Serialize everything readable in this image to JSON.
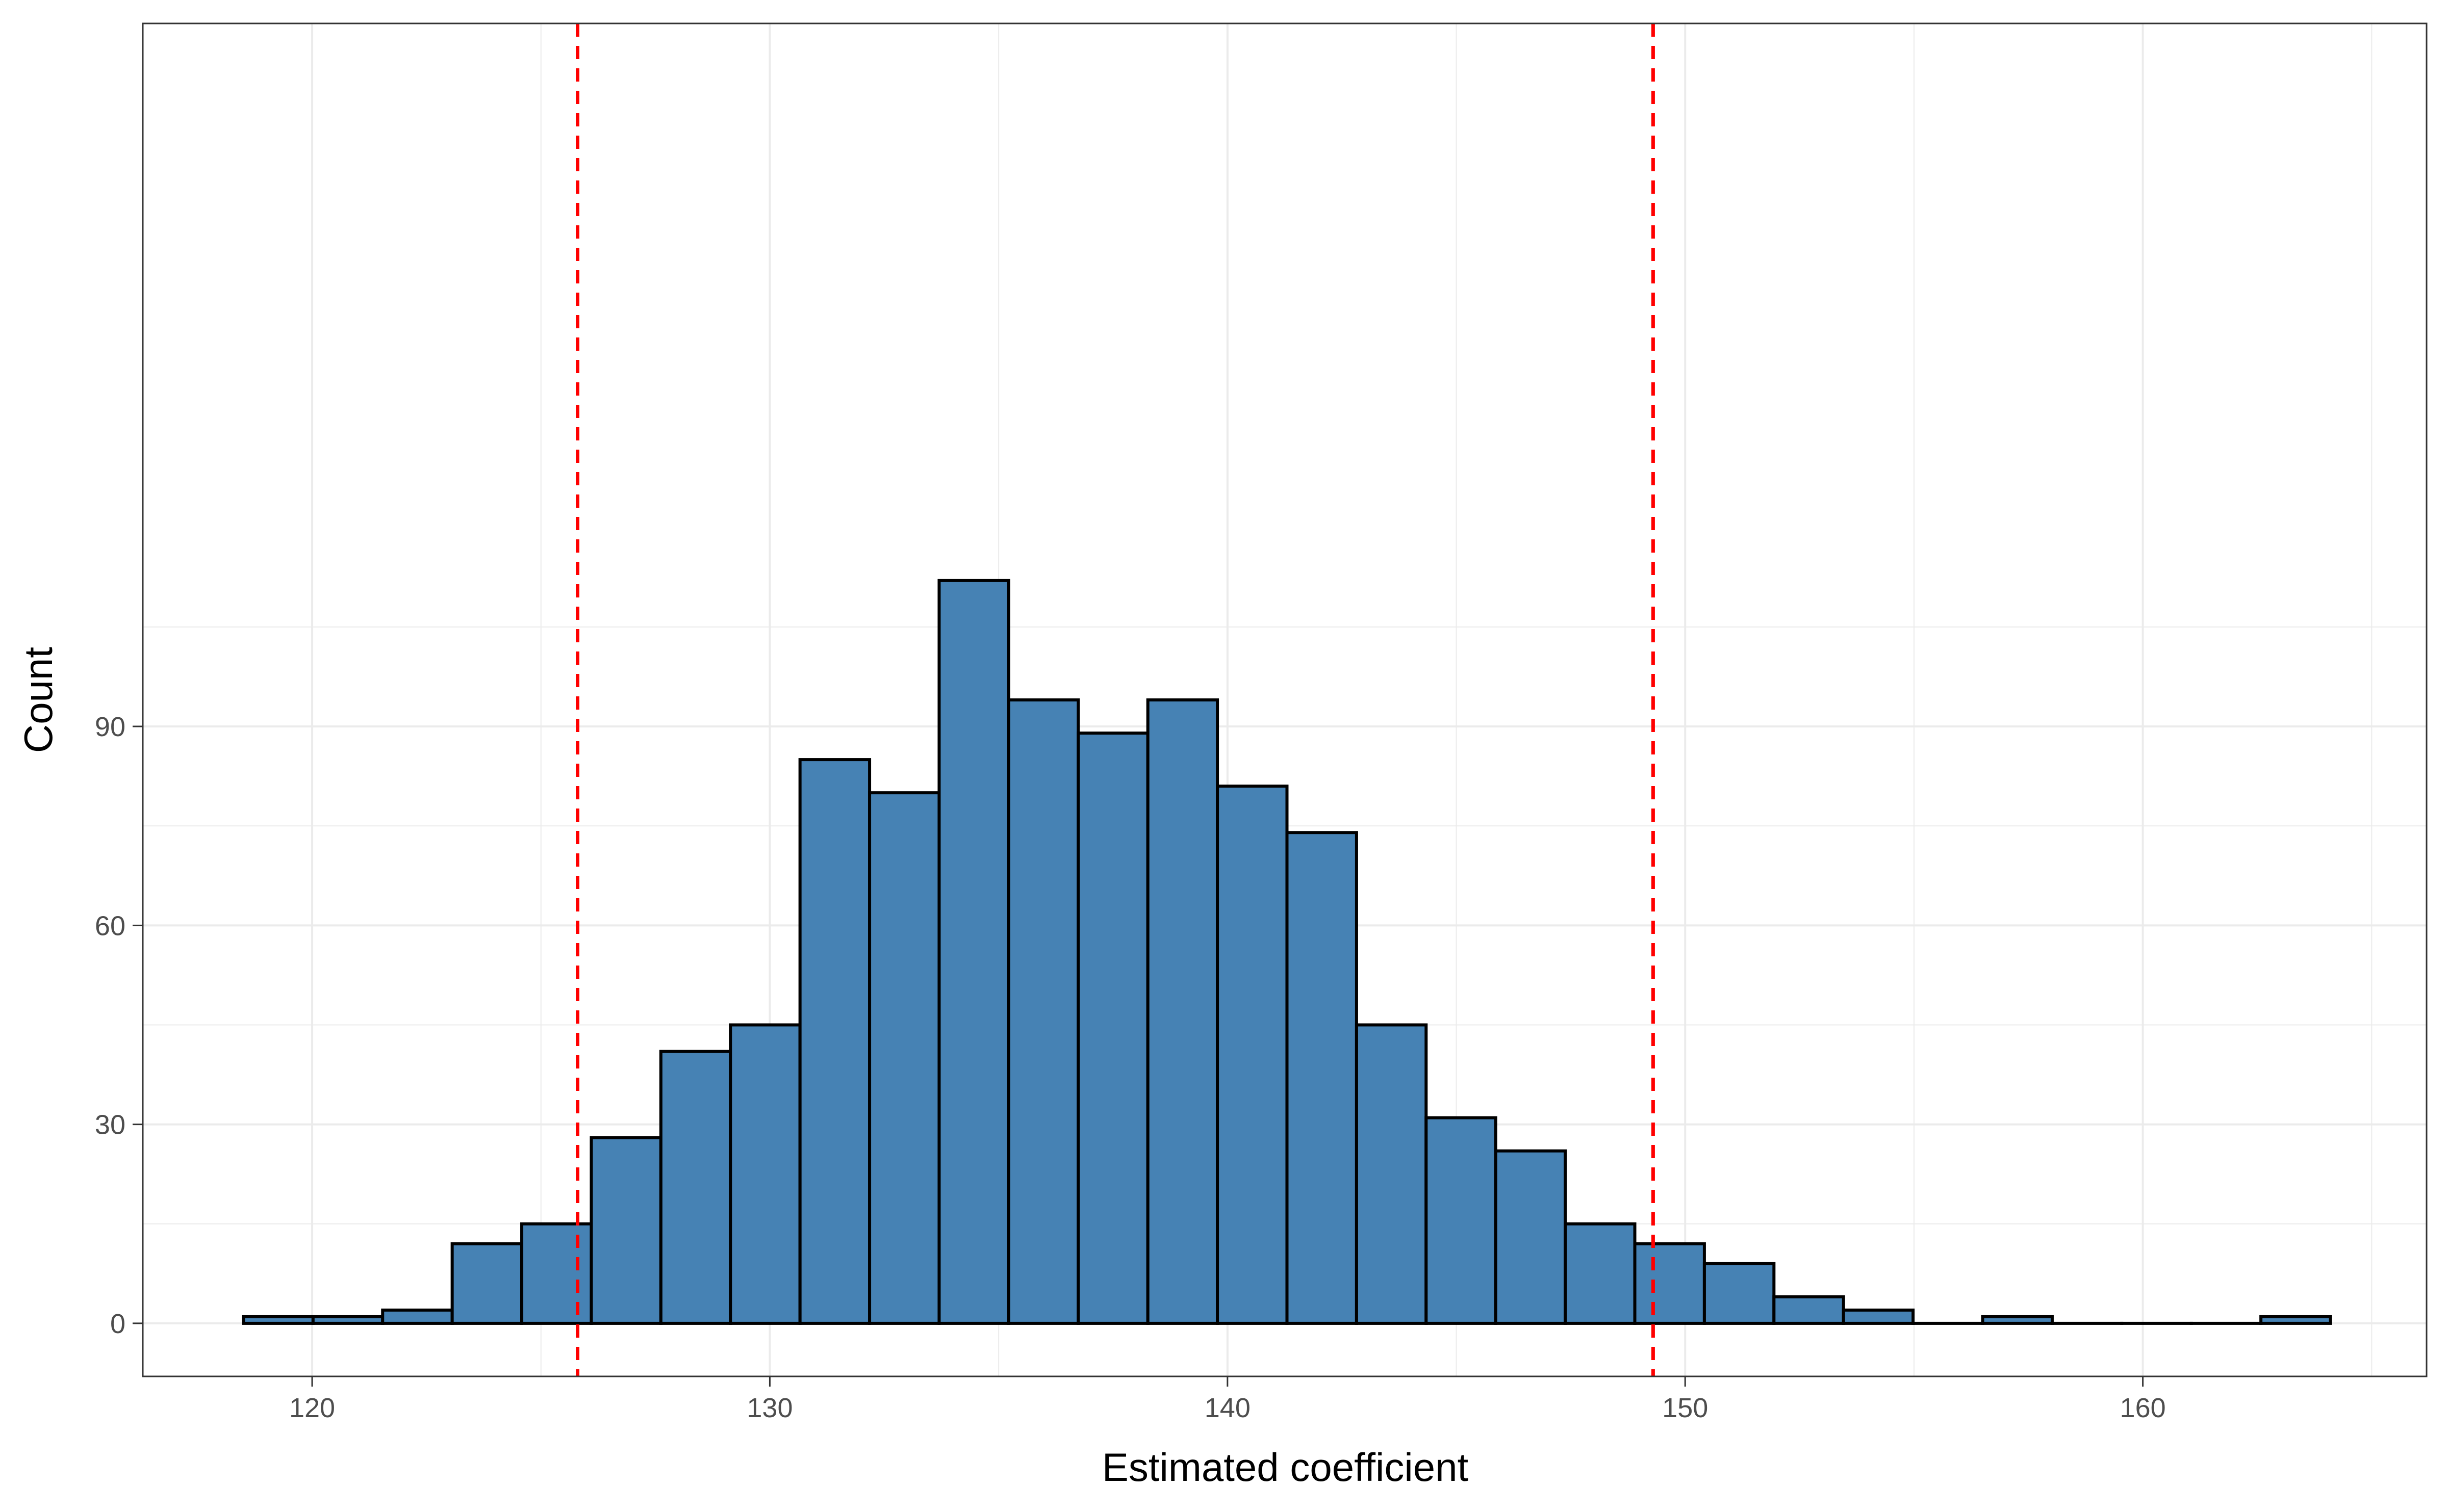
{
  "chart_data": {
    "type": "bar",
    "subtype": "histogram",
    "title": "",
    "xlabel": "Estimated coefficient",
    "ylabel": "Count",
    "xlim": [
      116.3,
      166.2
    ],
    "ylim": [
      -8,
      196
    ],
    "x_ticks": [
      120,
      130,
      140,
      150,
      160
    ],
    "y_ticks": [
      0,
      30,
      60,
      90
    ],
    "grid": true,
    "legend": "none",
    "bin_width": 1.52,
    "bin_start": 118.5,
    "counts": [
      1,
      1,
      2,
      12,
      15,
      28,
      41,
      45,
      85,
      80,
      112,
      94,
      89,
      94,
      81,
      74,
      45,
      31,
      26,
      15,
      12,
      9,
      4,
      2,
      0,
      1,
      0,
      0,
      0,
      1
    ],
    "ci_lines": [
      125.8,
      149.3
    ],
    "bar_fill": "#4682b4",
    "bar_outline": "#000000",
    "ci_line_color": "#ff0000",
    "grid_color": "#ebebeb"
  }
}
